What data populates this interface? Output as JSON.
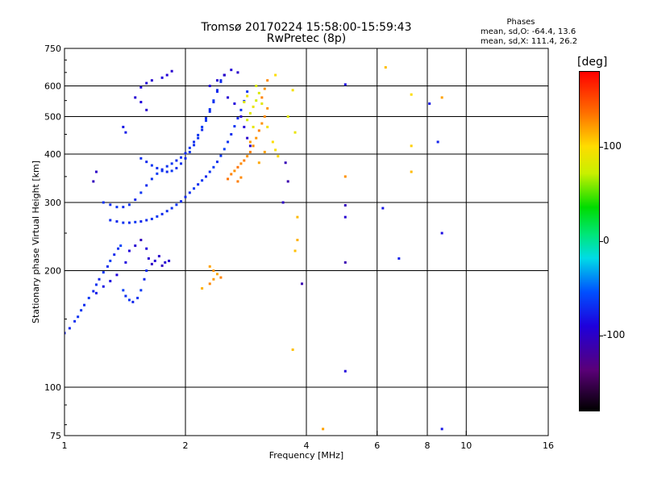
{
  "chart_data": {
    "type": "scatter",
    "title": "Tromsø 20170224 15:58:00-15:59:43",
    "subtitle": "RwPretec (8p)",
    "legend": {
      "title": "Phases",
      "line1": "mean, sd,O: -64.4, 13.6",
      "line2": "mean, sd,X: 111.4, 26.2"
    },
    "xlabel": "Frequency [MHz]",
    "ylabel": "Stationary phase Virtual Height [km]",
    "x_scale": "log",
    "y_scale": "log",
    "xlim": [
      1,
      16
    ],
    "ylim": [
      75,
      750
    ],
    "x_ticks": [
      1,
      2,
      4,
      6,
      8,
      10,
      16
    ],
    "y_ticks": [
      75,
      100,
      200,
      300,
      400,
      500,
      600,
      750
    ],
    "x_grid": [
      2,
      4,
      6,
      8,
      10
    ],
    "y_grid": [
      100,
      200,
      300,
      400,
      500,
      600
    ],
    "grid": true,
    "colorbar": {
      "label": "[deg]",
      "range": [
        -180,
        180
      ],
      "ticks": [
        100,
        0,
        -100
      ]
    },
    "series": [
      {
        "values": [
          [
            1.0,
            138,
            -75
          ],
          [
            1.03,
            142,
            -72
          ],
          [
            1.06,
            148,
            -70
          ],
          [
            1.08,
            152,
            -68
          ],
          [
            1.1,
            158,
            -66
          ],
          [
            1.12,
            163,
            -70
          ],
          [
            1.15,
            170,
            -65
          ],
          [
            1.18,
            177,
            -72
          ],
          [
            1.2,
            184,
            -68
          ],
          [
            1.22,
            190,
            -75
          ],
          [
            1.25,
            198,
            -66
          ],
          [
            1.28,
            205,
            -70
          ],
          [
            1.3,
            212,
            -64
          ],
          [
            1.33,
            220,
            -72
          ],
          [
            1.36,
            228,
            -68
          ],
          [
            1.38,
            232,
            -60
          ],
          [
            1.4,
            178,
            -62
          ],
          [
            1.42,
            172,
            -70
          ],
          [
            1.45,
            168,
            -66
          ],
          [
            1.48,
            166,
            -74
          ],
          [
            1.52,
            170,
            -68
          ],
          [
            1.55,
            178,
            -65
          ],
          [
            1.58,
            190,
            -72
          ],
          [
            1.6,
            200,
            -70
          ],
          [
            1.62,
            215,
            -95
          ],
          [
            1.65,
            208,
            -100
          ],
          [
            1.68,
            212,
            -92
          ],
          [
            1.72,
            218,
            -98
          ],
          [
            1.75,
            206,
            -102
          ],
          [
            1.78,
            210,
            -94
          ],
          [
            1.82,
            212,
            -96
          ],
          [
            1.6,
            228,
            -90
          ],
          [
            1.55,
            240,
            -104
          ],
          [
            1.5,
            232,
            -95
          ],
          [
            1.45,
            225,
            -92
          ],
          [
            1.42,
            210,
            -88
          ],
          [
            1.35,
            195,
            -90
          ],
          [
            1.3,
            188,
            -85
          ],
          [
            1.25,
            182,
            -82
          ],
          [
            1.2,
            175,
            -78
          ]
        ]
      },
      {
        "values": [
          [
            1.3,
            270,
            -70
          ],
          [
            1.35,
            268,
            -72
          ],
          [
            1.4,
            266,
            -68
          ],
          [
            1.45,
            266,
            -70
          ],
          [
            1.5,
            267,
            -66
          ],
          [
            1.55,
            268,
            -72
          ],
          [
            1.6,
            270,
            -70
          ],
          [
            1.65,
            272,
            -68
          ],
          [
            1.7,
            276,
            -66
          ],
          [
            1.75,
            280,
            -72
          ],
          [
            1.8,
            285,
            -70
          ],
          [
            1.85,
            290,
            -68
          ],
          [
            1.9,
            296,
            -66
          ],
          [
            1.95,
            302,
            -70
          ],
          [
            2.0,
            310,
            -72
          ],
          [
            2.05,
            318,
            -68
          ],
          [
            2.1,
            326,
            -64
          ],
          [
            2.15,
            334,
            -70
          ],
          [
            2.2,
            342,
            -66
          ],
          [
            2.25,
            350,
            -72
          ],
          [
            2.3,
            360,
            -68
          ],
          [
            2.35,
            370,
            -65
          ],
          [
            2.4,
            382,
            -70
          ],
          [
            2.45,
            396,
            -66
          ],
          [
            2.5,
            412,
            -62
          ],
          [
            2.55,
            430,
            -68
          ],
          [
            2.6,
            450,
            -70
          ],
          [
            2.65,
            472,
            -66
          ],
          [
            2.7,
            495,
            -72
          ],
          [
            2.75,
            520,
            -68
          ],
          [
            2.8,
            548,
            -70
          ],
          [
            2.85,
            580,
            -66
          ]
        ]
      },
      {
        "values": [
          [
            1.25,
            300,
            -68
          ],
          [
            1.3,
            296,
            -70
          ],
          [
            1.35,
            292,
            -66
          ],
          [
            1.4,
            292,
            -70
          ],
          [
            1.45,
            296,
            -68
          ],
          [
            1.5,
            305,
            -72
          ],
          [
            1.55,
            318,
            -66
          ],
          [
            1.6,
            332,
            -70
          ],
          [
            1.65,
            345,
            -68
          ],
          [
            1.7,
            356,
            -64
          ],
          [
            1.75,
            365,
            -72
          ],
          [
            1.8,
            372,
            -68
          ],
          [
            1.85,
            378,
            -66
          ],
          [
            1.9,
            385,
            -70
          ],
          [
            1.95,
            392,
            -68
          ],
          [
            2.0,
            402,
            -72
          ],
          [
            2.05,
            415,
            -66
          ],
          [
            2.1,
            430,
            -70
          ],
          [
            2.15,
            448,
            -68
          ],
          [
            2.2,
            470,
            -64
          ],
          [
            2.25,
            495,
            -70
          ],
          [
            2.3,
            522,
            -68
          ],
          [
            2.35,
            550,
            -66
          ],
          [
            2.4,
            585,
            -72
          ],
          [
            2.45,
            620,
            -70
          ],
          [
            2.5,
            640,
            -68
          ]
        ]
      },
      {
        "values": [
          [
            1.55,
            390,
            -70
          ],
          [
            1.6,
            382,
            -72
          ],
          [
            1.65,
            374,
            -66
          ],
          [
            1.7,
            368,
            -70
          ],
          [
            1.75,
            362,
            -68
          ],
          [
            1.8,
            360,
            -72
          ],
          [
            1.85,
            362,
            -66
          ],
          [
            1.9,
            368,
            -70
          ],
          [
            1.95,
            378,
            -68
          ],
          [
            2.0,
            390,
            -72
          ],
          [
            2.05,
            405,
            -66
          ],
          [
            2.1,
            422,
            -70
          ],
          [
            2.15,
            440,
            -68
          ],
          [
            2.2,
            462,
            -72
          ],
          [
            2.25,
            488,
            -66
          ],
          [
            2.3,
            515,
            -70
          ],
          [
            2.35,
            545,
            -68
          ],
          [
            2.4,
            580,
            -72
          ],
          [
            2.45,
            615,
            -70
          ],
          [
            2.5,
            640,
            -66
          ]
        ]
      },
      {
        "values": [
          [
            2.3,
            600,
            -90
          ],
          [
            2.4,
            620,
            -95
          ],
          [
            2.5,
            640,
            -100
          ],
          [
            2.6,
            660,
            -92
          ],
          [
            2.7,
            650,
            -98
          ],
          [
            2.55,
            560,
            -94
          ],
          [
            2.65,
            540,
            -90
          ],
          [
            2.75,
            500,
            -96
          ],
          [
            2.8,
            470,
            -92
          ],
          [
            2.85,
            440,
            -98
          ],
          [
            2.9,
            420,
            -94
          ],
          [
            1.8,
            640,
            -92
          ],
          [
            1.85,
            655,
            -96
          ],
          [
            1.75,
            630,
            -90
          ],
          [
            1.55,
            595,
            -88
          ],
          [
            1.6,
            610,
            -92
          ],
          [
            1.65,
            620,
            -95
          ],
          [
            1.5,
            560,
            -94
          ],
          [
            1.55,
            545,
            -90
          ],
          [
            1.6,
            520,
            -96
          ],
          [
            1.4,
            470,
            -80
          ],
          [
            1.42,
            455,
            -78
          ],
          [
            1.2,
            360,
            -100
          ],
          [
            1.18,
            340,
            -105
          ]
        ]
      },
      {
        "values": [
          [
            2.6,
            355,
            130
          ],
          [
            2.65,
            362,
            125
          ],
          [
            2.7,
            370,
            135
          ],
          [
            2.75,
            378,
            128
          ],
          [
            2.8,
            385,
            132
          ],
          [
            2.85,
            395,
            125
          ],
          [
            2.9,
            405,
            130
          ],
          [
            2.95,
            420,
            128
          ],
          [
            3.0,
            440,
            124
          ],
          [
            3.05,
            460,
            130
          ],
          [
            3.1,
            480,
            126
          ],
          [
            3.15,
            500,
            128
          ],
          [
            3.2,
            525,
            124
          ],
          [
            3.1,
            560,
            130
          ],
          [
            3.15,
            590,
            125
          ],
          [
            3.2,
            620,
            128
          ],
          [
            2.7,
            340,
            132
          ],
          [
            2.75,
            348,
            128
          ],
          [
            2.55,
            345,
            135
          ],
          [
            2.9,
            430,
            122
          ],
          [
            3.05,
            380,
            118
          ],
          [
            3.15,
            405,
            120
          ]
        ]
      },
      {
        "values": [
          [
            2.85,
            490,
            80
          ],
          [
            2.9,
            510,
            85
          ],
          [
            2.95,
            530,
            90
          ],
          [
            3.0,
            550,
            78
          ],
          [
            3.05,
            575,
            82
          ],
          [
            2.95,
            470,
            88
          ],
          [
            2.8,
            545,
            84
          ],
          [
            2.85,
            565,
            92
          ],
          [
            3.0,
            600,
            80
          ],
          [
            3.1,
            540,
            86
          ],
          [
            3.2,
            470,
            95
          ],
          [
            3.3,
            430,
            100
          ],
          [
            3.35,
            410,
            98
          ],
          [
            3.4,
            395,
            102
          ]
        ]
      },
      {
        "values": [
          [
            2.3,
            205,
            120
          ],
          [
            2.35,
            200,
            125
          ],
          [
            2.4,
            196,
            118
          ],
          [
            2.45,
            192,
            130
          ],
          [
            2.35,
            190,
            122
          ],
          [
            2.3,
            185,
            128
          ],
          [
            2.2,
            180,
            115
          ],
          [
            3.75,
            225,
            110
          ],
          [
            3.8,
            240,
            115
          ],
          [
            3.8,
            275,
            112
          ],
          [
            3.7,
            125,
            110
          ],
          [
            4.4,
            78,
            120
          ],
          [
            5.0,
            350,
            125
          ],
          [
            6.3,
            670,
            110
          ],
          [
            7.3,
            420,
            105
          ],
          [
            7.3,
            360,
            112
          ],
          [
            7.3,
            570,
            100
          ],
          [
            8.7,
            560,
            120
          ],
          [
            3.35,
            640,
            100
          ],
          [
            3.7,
            585,
            95
          ],
          [
            3.75,
            455,
            90
          ],
          [
            3.6,
            500,
            85
          ]
        ]
      },
      {
        "values": [
          [
            3.9,
            185,
            -110
          ],
          [
            5.0,
            295,
            -105
          ],
          [
            5.0,
            275,
            -95
          ],
          [
            5.0,
            210,
            -110
          ],
          [
            5.0,
            110,
            -90
          ],
          [
            5.0,
            605,
            -85
          ],
          [
            6.2,
            290,
            -80
          ],
          [
            6.8,
            215,
            -75
          ],
          [
            8.1,
            540,
            -80
          ],
          [
            8.5,
            430,
            -75
          ],
          [
            8.7,
            250,
            -85
          ],
          [
            8.7,
            78,
            -80
          ],
          [
            3.6,
            340,
            -112
          ],
          [
            3.55,
            380,
            -108
          ],
          [
            3.5,
            300,
            -100
          ]
        ]
      }
    ]
  }
}
